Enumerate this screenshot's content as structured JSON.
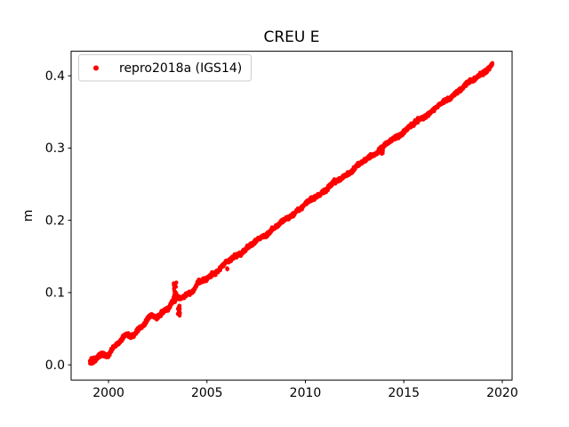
{
  "figure": {
    "kind": "matplotlib-style plot",
    "background": "#ffffff"
  },
  "chart_data": {
    "type": "scatter",
    "title": "CREU E",
    "xlabel": "",
    "ylabel": "m",
    "grid": false,
    "xlim": [
      1998.1,
      2020.5
    ],
    "ylim": [
      -0.021,
      0.434
    ],
    "xticks": [
      2000,
      2005,
      2010,
      2015,
      2020
    ],
    "yticks": [
      0.0,
      0.1,
      0.2,
      0.3,
      0.4
    ],
    "ytick_labels": [
      "0.0",
      "0.1",
      "0.2",
      "0.3",
      "0.4"
    ],
    "legend": {
      "position": "upper-left",
      "entries": [
        {
          "label": "repro2018a (IGS14)",
          "color": "#ff0000",
          "marker": "dot"
        }
      ]
    },
    "series": [
      {
        "name": "repro2018a (IGS14)",
        "color": "#ff0000",
        "marker": "dot",
        "marker_diameter_px": 4.4,
        "rate_m_per_yr": 0.0202,
        "x_range": [
          1999.05,
          2019.5
        ],
        "trend_points": [
          [
            1999.05,
            0.0
          ],
          [
            2000.0,
            0.019
          ],
          [
            2001.0,
            0.04
          ],
          [
            2002.0,
            0.06
          ],
          [
            2003.0,
            0.08
          ],
          [
            2004.0,
            0.1
          ],
          [
            2005.0,
            0.12
          ],
          [
            2006.0,
            0.141
          ],
          [
            2007.0,
            0.161
          ],
          [
            2008.0,
            0.181
          ],
          [
            2009.0,
            0.201
          ],
          [
            2010.0,
            0.222
          ],
          [
            2011.0,
            0.242
          ],
          [
            2012.0,
            0.262
          ],
          [
            2013.0,
            0.282
          ],
          [
            2014.0,
            0.303
          ],
          [
            2015.0,
            0.323
          ],
          [
            2016.0,
            0.343
          ],
          [
            2017.0,
            0.363
          ],
          [
            2018.0,
            0.384
          ],
          [
            2019.0,
            0.404
          ],
          [
            2019.5,
            0.414
          ]
        ],
        "anomalies": [
          {
            "year": 2003.38,
            "years_span": 0.14,
            "value_range": [
              0.086,
              0.114
            ],
            "points": 34,
            "description": "upward spike cluster"
          },
          {
            "year": 2003.57,
            "years_span": 0.12,
            "value_range": [
              0.067,
              0.082
            ],
            "points": 22,
            "description": "detached cluster below trend"
          },
          {
            "year": 2013.91,
            "years_span": 0.1,
            "value_range": [
              0.291,
              0.297
            ],
            "points": 8,
            "description": "small notch below band"
          },
          {
            "year": 2006.02,
            "years_span": 0.03,
            "value_range": [
              0.132,
              0.135
            ],
            "points": 3,
            "description": "stray point below band"
          }
        ]
      }
    ]
  }
}
